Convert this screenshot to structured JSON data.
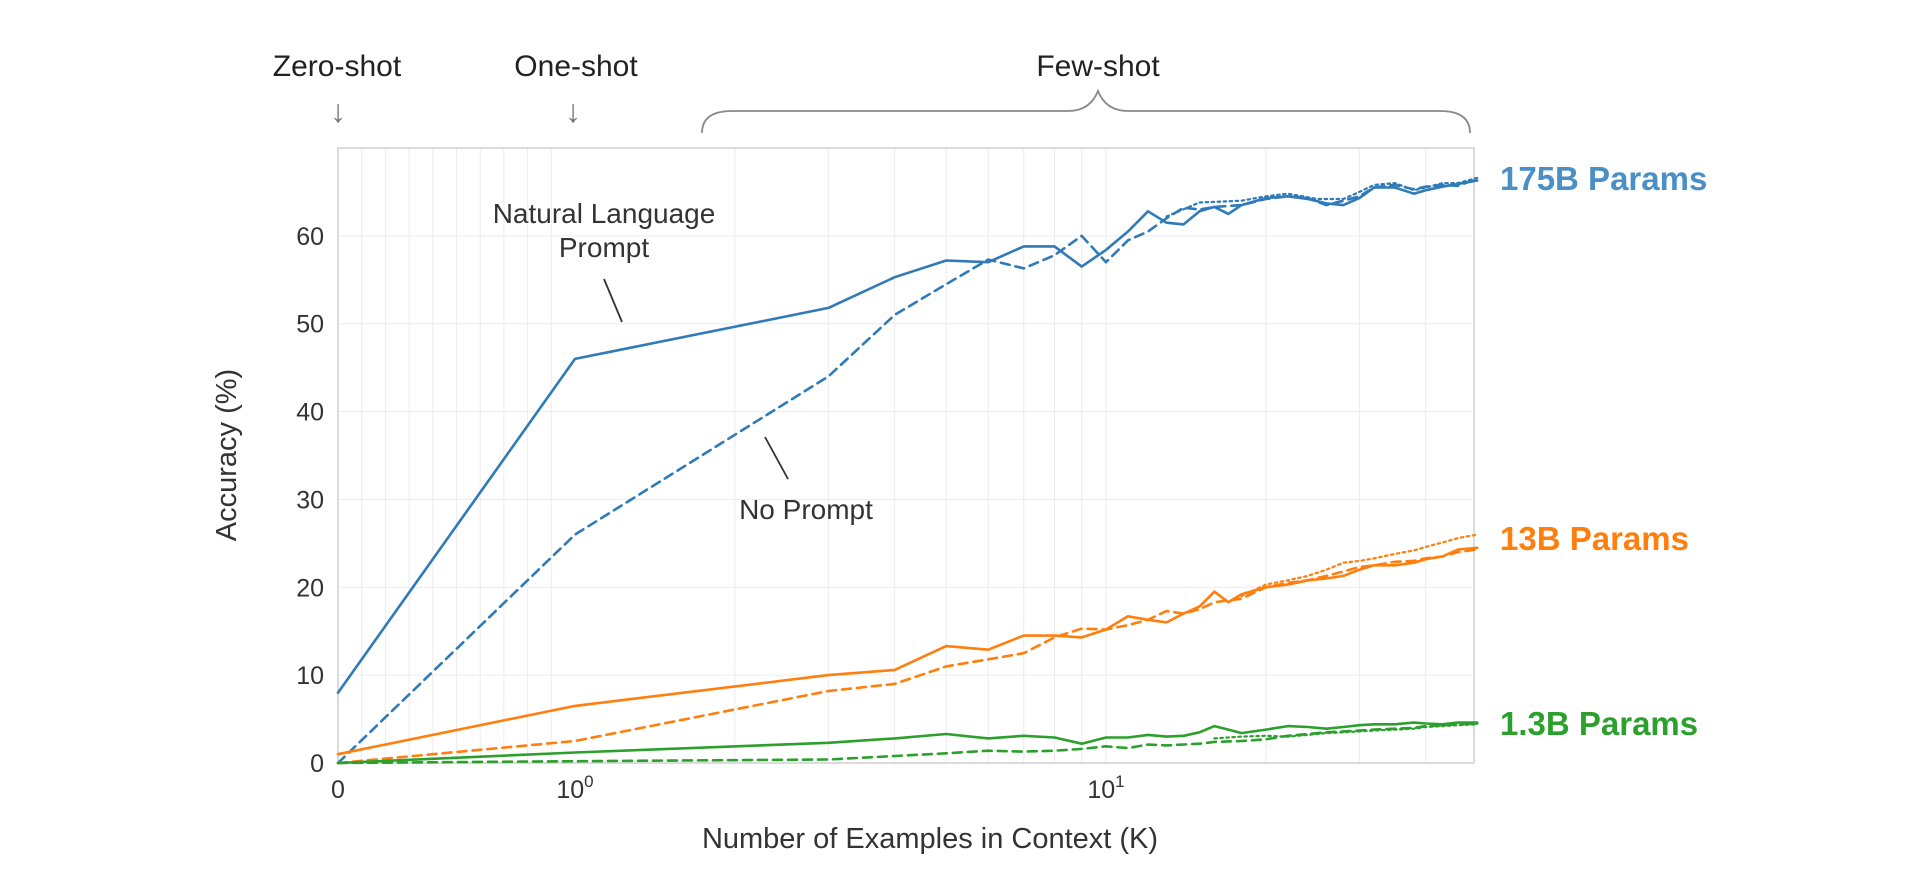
{
  "chart_data": {
    "type": "line",
    "title": "",
    "xlabel": "Number of Examples in Context  (K)",
    "ylabel": "Accuracy (%)",
    "x_scale": "symlog",
    "xlim": [
      0,
      50
    ],
    "ylim": [
      0,
      70
    ],
    "grid": true,
    "x_ticks": [
      {
        "value": 0,
        "base": "0",
        "exp": ""
      },
      {
        "value": 1,
        "base": "10",
        "exp": "0"
      },
      {
        "value": 10,
        "base": "10",
        "exp": "1"
      }
    ],
    "y_ticks": [
      0,
      10,
      20,
      30,
      40,
      50,
      60
    ],
    "regimes": [
      {
        "label": "Zero-shot",
        "arrow": "↓"
      },
      {
        "label": "One-shot",
        "arrow": "↓"
      },
      {
        "label": "Few-shot"
      }
    ],
    "annotations": [
      {
        "line1": "Natural Language",
        "line2": "Prompt"
      },
      {
        "line1": "No Prompt",
        "line2": ""
      }
    ],
    "series": [
      {
        "name": "175B Params",
        "label": "175B Params",
        "color": "#2f7ab8",
        "style": "solid",
        "points": [
          [
            0,
            8
          ],
          [
            1,
            46
          ],
          [
            3,
            51.8
          ],
          [
            4,
            55.3
          ],
          [
            5,
            57.2
          ],
          [
            6,
            57
          ],
          [
            7,
            58.8
          ],
          [
            8,
            58.8
          ],
          [
            9,
            56.5
          ],
          [
            10,
            58.4
          ],
          [
            11,
            60.5
          ],
          [
            12,
            62.8
          ],
          [
            13,
            61.5
          ],
          [
            14,
            61.3
          ],
          [
            15,
            62.8
          ],
          [
            16,
            63.3
          ],
          [
            17,
            62.5
          ],
          [
            18,
            63.5
          ],
          [
            20,
            64.3
          ],
          [
            22,
            64.5
          ],
          [
            24,
            64.2
          ],
          [
            26,
            63.7
          ],
          [
            28,
            63.5
          ],
          [
            30,
            64.3
          ],
          [
            32,
            65.5
          ],
          [
            35,
            65.5
          ],
          [
            38,
            64.8
          ],
          [
            40,
            65.2
          ],
          [
            43,
            65.6
          ],
          [
            46,
            65.9
          ],
          [
            50,
            66.3
          ]
        ]
      },
      {
        "name": "175B Params",
        "label": "175B Params",
        "color": "#2f7ab8",
        "style": "dashed",
        "points": [
          [
            0,
            0
          ],
          [
            1,
            26
          ],
          [
            3,
            44
          ],
          [
            4,
            51
          ],
          [
            5,
            54.5
          ],
          [
            6,
            57.3
          ],
          [
            7,
            56.3
          ],
          [
            8,
            57.8
          ],
          [
            9,
            60
          ],
          [
            10,
            57
          ],
          [
            11,
            59.5
          ],
          [
            12,
            60.5
          ],
          [
            13,
            62
          ],
          [
            14,
            63.2
          ],
          [
            15,
            63
          ],
          [
            16,
            63.3
          ],
          [
            18,
            63.5
          ],
          [
            20,
            64.2
          ],
          [
            22,
            64.5
          ],
          [
            24,
            64.3
          ],
          [
            26,
            63.5
          ],
          [
            28,
            64
          ],
          [
            30,
            64.5
          ],
          [
            32,
            65.5
          ],
          [
            35,
            65.8
          ],
          [
            38,
            65.3
          ],
          [
            40,
            65.6
          ],
          [
            43,
            65.8
          ],
          [
            46,
            65.7
          ],
          [
            50,
            66.5
          ]
        ]
      },
      {
        "name": "175B Params",
        "label": "175B Params",
        "color": "#2f7ab8",
        "style": "dotted",
        "points": [
          [
            13,
            62.2
          ],
          [
            15,
            63.8
          ],
          [
            18,
            64
          ],
          [
            20,
            64.5
          ],
          [
            22,
            64.8
          ],
          [
            25,
            64.2
          ],
          [
            28,
            64.2
          ],
          [
            30,
            65
          ],
          [
            32,
            65.8
          ],
          [
            35,
            66
          ],
          [
            38,
            65.2
          ],
          [
            40,
            65.5
          ],
          [
            43,
            66
          ],
          [
            46,
            66
          ],
          [
            50,
            66.6
          ]
        ]
      },
      {
        "name": "13B Params",
        "label": "13B Params",
        "color": "#ff7f0e",
        "style": "solid",
        "points": [
          [
            0,
            1
          ],
          [
            1,
            6.5
          ],
          [
            3,
            10
          ],
          [
            4,
            10.6
          ],
          [
            5,
            13.3
          ],
          [
            6,
            12.9
          ],
          [
            7,
            14.5
          ],
          [
            8,
            14.5
          ],
          [
            9,
            14.3
          ],
          [
            10,
            15.2
          ],
          [
            11,
            16.7
          ],
          [
            12,
            16.3
          ],
          [
            13,
            16
          ],
          [
            14,
            17
          ],
          [
            15,
            17.8
          ],
          [
            16,
            19.5
          ],
          [
            17,
            18.3
          ],
          [
            18,
            19.2
          ],
          [
            20,
            20
          ],
          [
            22,
            20.3
          ],
          [
            24,
            20.8
          ],
          [
            26,
            21
          ],
          [
            28,
            21.3
          ],
          [
            30,
            22
          ],
          [
            32,
            22.5
          ],
          [
            35,
            22.5
          ],
          [
            38,
            22.8
          ],
          [
            40,
            23.2
          ],
          [
            43,
            23.5
          ],
          [
            46,
            24.3
          ],
          [
            50,
            24.5
          ]
        ]
      },
      {
        "name": "13B Params",
        "label": "13B Params",
        "color": "#ff7f0e",
        "style": "dashed",
        "points": [
          [
            0,
            0
          ],
          [
            1,
            2.5
          ],
          [
            3,
            8.2
          ],
          [
            4,
            9
          ],
          [
            5,
            11
          ],
          [
            6,
            11.8
          ],
          [
            7,
            12.5
          ],
          [
            8,
            14.3
          ],
          [
            9,
            15.3
          ],
          [
            10,
            15.2
          ],
          [
            11,
            15.7
          ],
          [
            12,
            16.3
          ],
          [
            13,
            17.3
          ],
          [
            14,
            17
          ],
          [
            15,
            17.5
          ],
          [
            16,
            18.3
          ],
          [
            18,
            18.7
          ],
          [
            20,
            20
          ],
          [
            22,
            20.5
          ],
          [
            24,
            20.8
          ],
          [
            26,
            21.3
          ],
          [
            28,
            21.8
          ],
          [
            30,
            22.3
          ],
          [
            32,
            22.5
          ],
          [
            35,
            22.9
          ],
          [
            38,
            23
          ],
          [
            40,
            23.3
          ],
          [
            43,
            23.5
          ],
          [
            46,
            24
          ],
          [
            50,
            24.3
          ]
        ]
      },
      {
        "name": "13B Params",
        "label": "13B Params",
        "color": "#ff7f0e",
        "style": "dotted",
        "points": [
          [
            18,
            19
          ],
          [
            20,
            20.3
          ],
          [
            22,
            20.8
          ],
          [
            24,
            21.3
          ],
          [
            26,
            22
          ],
          [
            28,
            22.8
          ],
          [
            30,
            23
          ],
          [
            32,
            23.3
          ],
          [
            35,
            23.8
          ],
          [
            38,
            24.2
          ],
          [
            40,
            24.6
          ],
          [
            43,
            25.1
          ],
          [
            46,
            25.6
          ],
          [
            50,
            26
          ]
        ]
      },
      {
        "name": "1.3B Params",
        "label": "1.3B Params",
        "color": "#2ca02c",
        "style": "solid",
        "points": [
          [
            0,
            0
          ],
          [
            1,
            1.2
          ],
          [
            3,
            2.3
          ],
          [
            4,
            2.8
          ],
          [
            5,
            3.3
          ],
          [
            6,
            2.8
          ],
          [
            7,
            3.1
          ],
          [
            8,
            2.9
          ],
          [
            9,
            2.2
          ],
          [
            10,
            2.9
          ],
          [
            11,
            2.9
          ],
          [
            12,
            3.2
          ],
          [
            13,
            3
          ],
          [
            14,
            3.1
          ],
          [
            15,
            3.5
          ],
          [
            16,
            4.2
          ],
          [
            17,
            3.8
          ],
          [
            18,
            3.4
          ],
          [
            20,
            3.8
          ],
          [
            22,
            4.2
          ],
          [
            24,
            4.1
          ],
          [
            26,
            3.9
          ],
          [
            28,
            4.1
          ],
          [
            30,
            4.3
          ],
          [
            32,
            4.4
          ],
          [
            35,
            4.4
          ],
          [
            38,
            4.6
          ],
          [
            40,
            4.5
          ],
          [
            43,
            4.4
          ],
          [
            46,
            4.6
          ],
          [
            50,
            4.6
          ]
        ]
      },
      {
        "name": "1.3B Params",
        "label": "1.3B Params",
        "color": "#2ca02c",
        "style": "dashed",
        "points": [
          [
            0,
            0
          ],
          [
            1,
            0.2
          ],
          [
            3,
            0.4
          ],
          [
            4,
            0.8
          ],
          [
            5,
            1.1
          ],
          [
            6,
            1.4
          ],
          [
            7,
            1.3
          ],
          [
            8,
            1.4
          ],
          [
            9,
            1.6
          ],
          [
            10,
            1.9
          ],
          [
            11,
            1.7
          ],
          [
            12,
            2.1
          ],
          [
            13,
            2
          ],
          [
            14,
            2.1
          ],
          [
            15,
            2.2
          ],
          [
            16,
            2.4
          ],
          [
            18,
            2.5
          ],
          [
            20,
            2.7
          ],
          [
            22,
            3.1
          ],
          [
            24,
            3.3
          ],
          [
            26,
            3.5
          ],
          [
            28,
            3.6
          ],
          [
            30,
            3.7
          ],
          [
            32,
            3.8
          ],
          [
            35,
            3.9
          ],
          [
            38,
            4
          ],
          [
            40,
            4.2
          ],
          [
            43,
            4.3
          ],
          [
            46,
            4.4
          ],
          [
            50,
            4.5
          ]
        ]
      },
      {
        "name": "1.3B Params",
        "label": "1.3B Params",
        "color": "#2ca02c",
        "style": "dotted",
        "points": [
          [
            16,
            2.8
          ],
          [
            18,
            3
          ],
          [
            20,
            3.1
          ],
          [
            22,
            3
          ],
          [
            24,
            3.2
          ],
          [
            26,
            3.4
          ],
          [
            28,
            3.5
          ],
          [
            30,
            3.6
          ],
          [
            32,
            3.7
          ],
          [
            35,
            3.8
          ],
          [
            38,
            3.9
          ],
          [
            40,
            4.1
          ],
          [
            43,
            4.2
          ],
          [
            46,
            4.3
          ],
          [
            50,
            4.4
          ]
        ]
      }
    ],
    "model_labels": [
      {
        "text": "175B Params",
        "color": "#4a8fc6"
      },
      {
        "text": "13B Params",
        "color": "#ff7f0e"
      },
      {
        "text": "1.3B Params",
        "color": "#2ca02c"
      }
    ]
  }
}
